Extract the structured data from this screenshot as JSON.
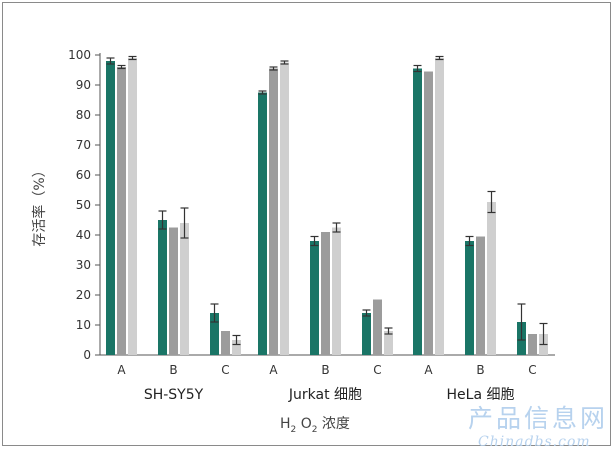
{
  "chart_data": {
    "type": "bar",
    "title": "",
    "ylabel": "存活率（%）",
    "xlabel": {
      "base": "H",
      "sub1": "2",
      "mid": " O",
      "sub2": "2",
      "tail": " 浓度"
    },
    "ylim": [
      0,
      100
    ],
    "yticks": [
      0,
      10,
      20,
      30,
      40,
      50,
      60,
      70,
      80,
      90,
      100
    ],
    "grid": false,
    "legend": "none",
    "groups": [
      "SH-SY5Y",
      "Jurkat 细胞",
      "HeLa 细胞"
    ],
    "categories": [
      "A",
      "B",
      "C"
    ],
    "bar_colors": [
      "#1a7566",
      "#9c9c9c",
      "#cfcfcf"
    ],
    "groups_data": [
      {
        "group": "SH-SY5Y",
        "conditions": [
          {
            "category": "A",
            "values": [
              98,
              96,
              99
            ],
            "errors": [
              1,
              0.5,
              0.5
            ]
          },
          {
            "category": "B",
            "values": [
              45,
              42.5,
              44
            ],
            "errors": [
              3,
              0,
              5
            ]
          },
          {
            "category": "C",
            "values": [
              14,
              8,
              5
            ],
            "errors": [
              3,
              0,
              1.5
            ]
          }
        ]
      },
      {
        "group": "Jurkat 细胞",
        "conditions": [
          {
            "category": "A",
            "values": [
              87.5,
              95.5,
              97.5
            ],
            "errors": [
              0.5,
              0.5,
              0.5
            ]
          },
          {
            "category": "B",
            "values": [
              38,
              41,
              42.5
            ],
            "errors": [
              1.5,
              0,
              1.5
            ]
          },
          {
            "category": "C",
            "values": [
              14,
              18.5,
              8
            ],
            "errors": [
              1,
              0,
              1
            ]
          }
        ]
      },
      {
        "group": "HeLa 细胞",
        "conditions": [
          {
            "category": "A",
            "values": [
              95.5,
              94.5,
              99
            ],
            "errors": [
              1,
              0,
              0.5
            ]
          },
          {
            "category": "B",
            "values": [
              38,
              39.5,
              51
            ],
            "errors": [
              1.5,
              0,
              3.5
            ]
          },
          {
            "category": "C",
            "values": [
              11,
              7,
              7
            ],
            "errors": [
              6,
              0,
              3.5
            ]
          }
        ]
      }
    ]
  },
  "watermark": {
    "line1": "产品信息网",
    "line2": "Chinadbs.com"
  }
}
